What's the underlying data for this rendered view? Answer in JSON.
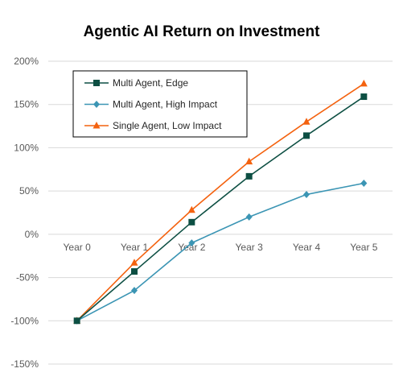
{
  "chart_data": {
    "type": "line",
    "title": "Agentic AI Return on Investment",
    "xlabel": "",
    "ylabel": "",
    "categories": [
      "Year 0",
      "Year 1",
      "Year 2",
      "Year 3",
      "Year 4",
      "Year 5"
    ],
    "y_ticks": [
      "200%",
      "150%",
      "100%",
      "50%",
      "0%",
      "-50%",
      "-100%",
      "-150%"
    ],
    "y_tick_values": [
      200,
      150,
      100,
      50,
      0,
      -50,
      -100,
      -150
    ],
    "ylim": [
      -150,
      200
    ],
    "y_unit": "%",
    "grid": "horizontal",
    "legend_position": "top-left",
    "series": [
      {
        "name": "Multi Agent, Edge",
        "values": [
          -100,
          -43,
          14,
          67,
          114,
          159
        ],
        "color": "#0d4f43",
        "marker": "square"
      },
      {
        "name": "Multi Agent, High Impact",
        "values": [
          -100,
          -65,
          -10,
          20,
          46,
          59
        ],
        "color": "#3b95b4",
        "marker": "diamond"
      },
      {
        "name": "Single Agent, Low Impact",
        "values": [
          -100,
          -33,
          28,
          84,
          130,
          174
        ],
        "color": "#f4620f",
        "marker": "triangle"
      }
    ]
  },
  "style": {
    "grid_color": "#d9d9d9",
    "tick_color": "#595959",
    "legend_border": "#000000"
  }
}
